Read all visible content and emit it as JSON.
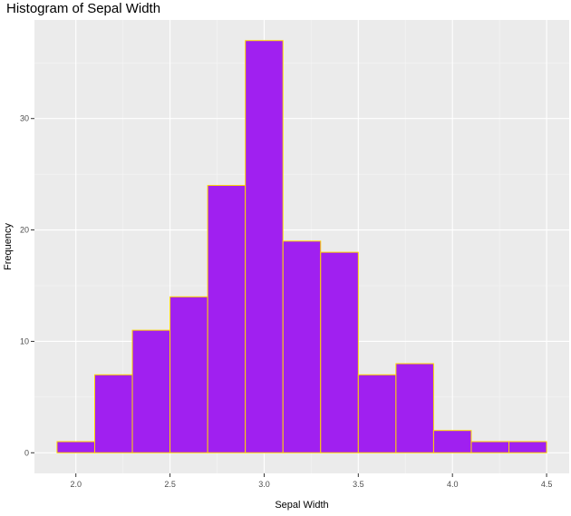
{
  "chart_data": {
    "type": "bar",
    "title": "Histogram of Sepal Width",
    "xlabel": "Sepal Width",
    "ylabel": "Frequency",
    "bins": [
      {
        "x0": 1.9,
        "x1": 2.1,
        "count": 1
      },
      {
        "x0": 2.1,
        "x1": 2.3,
        "count": 7
      },
      {
        "x0": 2.3,
        "x1": 2.5,
        "count": 11
      },
      {
        "x0": 2.5,
        "x1": 2.7,
        "count": 14
      },
      {
        "x0": 2.7,
        "x1": 2.9,
        "count": 24
      },
      {
        "x0": 2.9,
        "x1": 3.1,
        "count": 37
      },
      {
        "x0": 3.1,
        "x1": 3.3,
        "count": 19
      },
      {
        "x0": 3.3,
        "x1": 3.5,
        "count": 18
      },
      {
        "x0": 3.5,
        "x1": 3.7,
        "count": 7
      },
      {
        "x0": 3.7,
        "x1": 3.9,
        "count": 8
      },
      {
        "x0": 3.9,
        "x1": 4.1,
        "count": 2
      },
      {
        "x0": 4.1,
        "x1": 4.3,
        "count": 1
      },
      {
        "x0": 4.3,
        "x1": 4.5,
        "count": 1
      }
    ],
    "xlim": [
      1.78,
      4.62
    ],
    "ylim": [
      -1.85,
      38.85
    ],
    "x_ticks": [
      "2.0",
      "2.5",
      "3.0",
      "3.5",
      "4.0",
      "4.5"
    ],
    "y_ticks": [
      "0",
      "10",
      "20",
      "30"
    ],
    "grid": true,
    "colors": {
      "bar_fill": "#a020f0",
      "bar_outline": "#ffd700",
      "panel_background": "#ebebeb",
      "grid_major": "#ffffff",
      "grid_minor": "#f5f5f5"
    }
  }
}
